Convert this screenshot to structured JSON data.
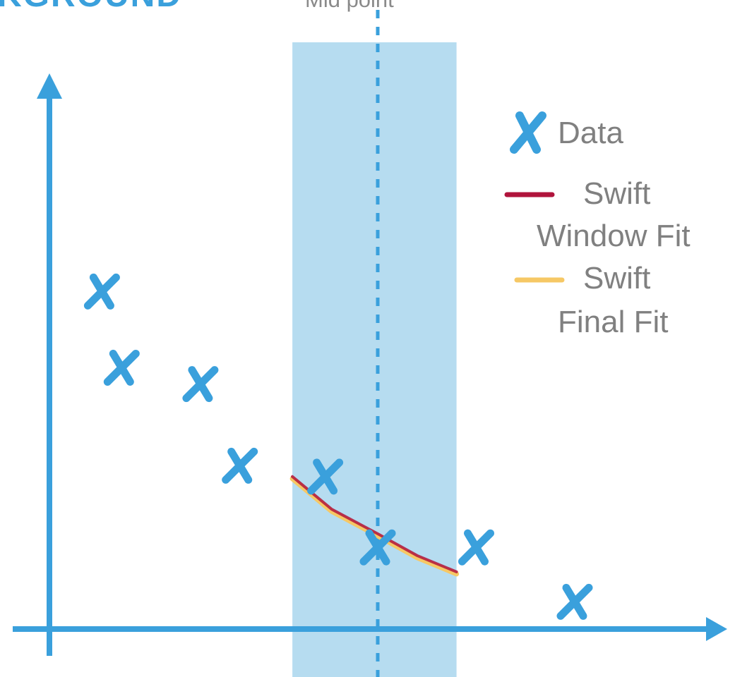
{
  "header": {
    "title_fragment": "KGROUND",
    "midpoint_label": "Mid point"
  },
  "legend": {
    "data_label": "Data",
    "swift_window_line1": "Swift",
    "swift_window_line2": "Window Fit",
    "swift_final_line1": "Swift",
    "swift_final_line2": "Final  Fit"
  },
  "colors": {
    "axis": "#3aa0dc",
    "marker": "#3aa0dc",
    "window_band": "#b6dcf0",
    "window_fit": "#b0143c",
    "final_fit": "#f6c865",
    "legend_text": "#808080"
  },
  "chart_data": {
    "type": "scatter",
    "title": "",
    "xlabel": "",
    "ylabel": "",
    "grid": false,
    "legend_position": "top-right",
    "xlim": [
      0,
      10
    ],
    "ylim": [
      0,
      10
    ],
    "series": [
      {
        "name": "Data",
        "marker": "x",
        "points": [
          [
            0.8,
            6.2
          ],
          [
            1.1,
            4.8
          ],
          [
            2.3,
            4.5
          ],
          [
            2.9,
            3.0
          ],
          [
            4.2,
            2.8
          ],
          [
            5.0,
            1.5
          ],
          [
            6.5,
            1.5
          ],
          [
            8.0,
            0.5
          ]
        ]
      },
      {
        "name": "Swift Window Fit",
        "style": "line",
        "points": [
          [
            3.7,
            2.8
          ],
          [
            4.3,
            2.2
          ],
          [
            5.0,
            1.75
          ],
          [
            5.6,
            1.35
          ],
          [
            6.2,
            1.05
          ]
        ]
      },
      {
        "name": "Swift Final Fit",
        "style": "line",
        "points": [
          [
            3.7,
            2.8
          ],
          [
            4.3,
            2.2
          ],
          [
            5.0,
            1.75
          ],
          [
            5.6,
            1.35
          ],
          [
            6.2,
            1.05
          ]
        ]
      }
    ],
    "window": {
      "x_start": 3.7,
      "x_end": 6.2,
      "midpoint": 5.0
    }
  }
}
